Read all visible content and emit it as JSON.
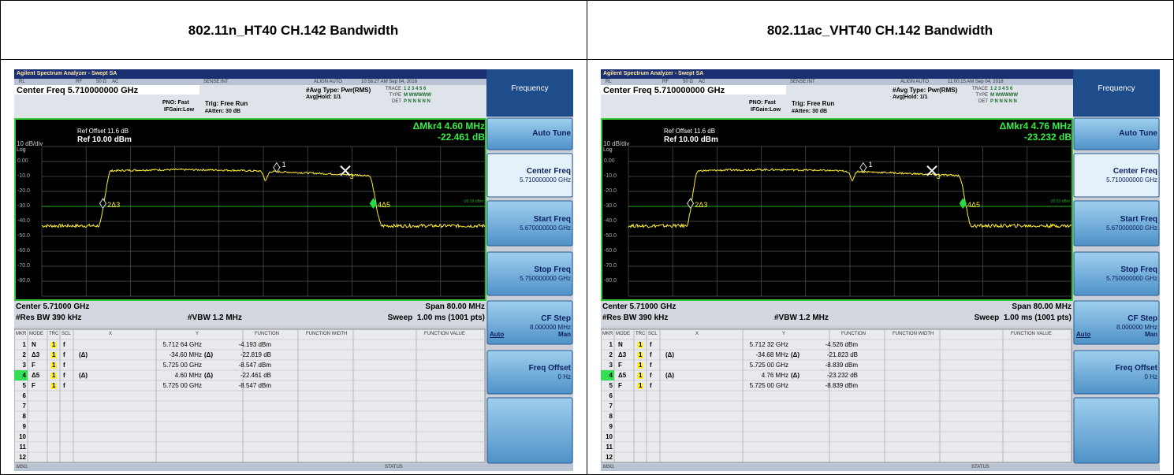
{
  "panels": [
    {
      "title": "802.11n_HT40 CH.142 Bandwidth",
      "app_title": "Agilent Spectrum Analyzer - Swept SA",
      "status_row": [
        "RL",
        "RF",
        "50 Ω",
        "AC",
        "SENSE:INT",
        "ALIGN AUTO",
        "10:58:27 AM Sep 04, 2018"
      ],
      "center_freq": "Center Freq 5.710000000 GHz",
      "pno": "PNO: Fast",
      "ifgain": "IFGain:Low",
      "trig": "Trig: Free Run",
      "atten": "#Atten: 30 dB",
      "avg_type": "#Avg Type: Pwr(RMS)",
      "avg_hold": "Avg|Hold: 1/1",
      "trace_labels": [
        "TRACE",
        "TYPE",
        "DET"
      ],
      "trace_values": [
        "1 2 3 4 5 6",
        "M WWWWW",
        "P N N N N N"
      ],
      "ref_offset": "Ref Offset 11.6 dB",
      "scale": "10 dB/div",
      "ref": "Ref 10.00 dBm",
      "log": "Log",
      "mkr": "ΔMkr4 4.60 MHz",
      "mkr_value": "-22.461 dB",
      "y_labels": [
        "0.00",
        "-10.0",
        "-20.0",
        "-30.0",
        "-40.0",
        "-50.0",
        "-60.0",
        "-70.0",
        "-80.0"
      ],
      "graph_markers": [
        "1",
        "2Δ3",
        "4Δ5",
        "3"
      ],
      "line_label": "-30.19 dBm",
      "center": "Center 5.71000 GHz",
      "span": "Span 80.00 MHz",
      "res_bw": "#Res BW 390 kHz",
      "vbw": "#VBW 1.2 MHz",
      "sweep": "Sweep  1.00 ms (1001 pts)",
      "table_header": [
        "MKR",
        "MODE",
        "TRC",
        "SCL",
        "X",
        "Y",
        "FUNCTION",
        "FUNCTION WIDTH",
        "FUNCTION VALUE"
      ],
      "rows": [
        {
          "mkr": "1",
          "mode": "N",
          "trc": "1",
          "scl": "f",
          "x": "5.712 64 GHz",
          "y": "-4.193 dBm"
        },
        {
          "mkr": "2",
          "mode": "Δ3",
          "trc": "1",
          "scl": "f",
          "xflag": "(Δ)",
          "x": "-34.60 MHz",
          "yflag": "(Δ)",
          "y": "-22.819 dB"
        },
        {
          "mkr": "3",
          "mode": "F",
          "trc": "1",
          "scl": "f",
          "x": "5.725 00 GHz",
          "y": "-8.547 dBm"
        },
        {
          "mkr": "4",
          "mode": "Δ5",
          "trc": "1",
          "scl": "f",
          "xflag": "(Δ)",
          "x": "4.60 MHz",
          "yflag": "(Δ)",
          "y": "-22.461 dB"
        },
        {
          "mkr": "5",
          "mode": "F",
          "trc": "1",
          "scl": "f",
          "x": "5.725 00 GHz",
          "y": "-8.547 dBm"
        },
        {
          "mkr": "6"
        },
        {
          "mkr": "7"
        },
        {
          "mkr": "8"
        },
        {
          "mkr": "9"
        },
        {
          "mkr": "10"
        },
        {
          "mkr": "11"
        },
        {
          "mkr": "12"
        }
      ],
      "msg": "MSG",
      "status": "STATUS",
      "menu_title": "Frequency",
      "buttons": [
        {
          "label": "Auto Tune"
        },
        {
          "label": "Center Freq",
          "value": "5.710000000 GHz"
        },
        {
          "label": "Start Freq",
          "value": "5.670000000 GHz"
        },
        {
          "label": "Stop Freq",
          "value": "5.750000000 GHz"
        },
        {
          "label": "CF Step",
          "value": "8.000000 MHz",
          "options": [
            "Auto",
            "Man"
          ]
        },
        {
          "label": "Freq Offset",
          "value": "0 Hz"
        }
      ]
    },
    {
      "title": "802.11ac_VHT40 CH.142 Bandwidth",
      "app_title": "Agilent Spectrum Analyzer - Swept SA",
      "status_row": [
        "RL",
        "RF",
        "50 Ω",
        "AC",
        "SENSE:INT",
        "ALIGN AUTO",
        "11:00:15 AM Sep 04, 2018"
      ],
      "center_freq": "Center Freq 5.710000000 GHz",
      "pno": "PNO: Fast",
      "ifgain": "IFGain:Low",
      "trig": "Trig: Free Run",
      "atten": "#Atten: 30 dB",
      "avg_type": "#Avg Type: Pwr(RMS)",
      "avg_hold": "Avg|Hold: 1/1",
      "trace_labels": [
        "TRACE",
        "TYPE",
        "DET"
      ],
      "trace_values": [
        "1 2 3 4 5 6",
        "M WWWWW",
        "P N N N N N"
      ],
      "ref_offset": "Ref Offset 11.6 dB",
      "scale": "10 dB/div",
      "ref": "Ref 10.00 dBm",
      "log": "Log",
      "mkr": "ΔMkr4 4.76 MHz",
      "mkr_value": "-23.232 dB",
      "y_labels": [
        "0.00",
        "-10.0",
        "-20.0",
        "-30.0",
        "-40.0",
        "-50.0",
        "-60.0",
        "-70.0",
        "-80.0"
      ],
      "graph_markers": [
        "1",
        "2Δ3",
        "4Δ5",
        "3"
      ],
      "line_label": "-30.53 dBm",
      "center": "Center 5.71000 GHz",
      "span": "Span 80.00 MHz",
      "res_bw": "#Res BW 390 kHz",
      "vbw": "#VBW 1.2 MHz",
      "sweep": "Sweep  1.00 ms (1001 pts)",
      "table_header": [
        "MKR",
        "MODE",
        "TRC",
        "SCL",
        "X",
        "Y",
        "FUNCTION",
        "FUNCTION WIDTH",
        "FUNCTION VALUE"
      ],
      "rows": [
        {
          "mkr": "1",
          "mode": "N",
          "trc": "1",
          "scl": "f",
          "x": "5.712 32 GHz",
          "y": "-4.526 dBm"
        },
        {
          "mkr": "2",
          "mode": "Δ3",
          "trc": "1",
          "scl": "f",
          "xflag": "(Δ)",
          "x": "-34.68 MHz",
          "yflag": "(Δ)",
          "y": "-21.823 dB"
        },
        {
          "mkr": "3",
          "mode": "F",
          "trc": "1",
          "scl": "f",
          "x": "5.725 00 GHz",
          "y": "-8.839 dBm"
        },
        {
          "mkr": "4",
          "mode": "Δ5",
          "trc": "1",
          "scl": "f",
          "xflag": "(Δ)",
          "x": "4.76 MHz",
          "yflag": "(Δ)",
          "y": "-23.232 dB"
        },
        {
          "mkr": "5",
          "mode": "F",
          "trc": "1",
          "scl": "f",
          "x": "5.725 00 GHz",
          "y": "-8.839 dBm"
        },
        {
          "mkr": "6"
        },
        {
          "mkr": "7"
        },
        {
          "mkr": "8"
        },
        {
          "mkr": "9"
        },
        {
          "mkr": "10"
        },
        {
          "mkr": "11"
        },
        {
          "mkr": "12"
        }
      ],
      "msg": "MSG",
      "status": "STATUS",
      "menu_title": "Frequency",
      "buttons": [
        {
          "label": "Auto Tune"
        },
        {
          "label": "Center Freq",
          "value": "5.710000000 GHz"
        },
        {
          "label": "Start Freq",
          "value": "5.670000000 GHz"
        },
        {
          "label": "Stop Freq",
          "value": "5.750000000 GHz"
        },
        {
          "label": "CF Step",
          "value": "8.000000 MHz",
          "options": [
            "Auto",
            "Man"
          ]
        },
        {
          "label": "Freq Offset",
          "value": "0 Hz"
        }
      ]
    }
  ]
}
